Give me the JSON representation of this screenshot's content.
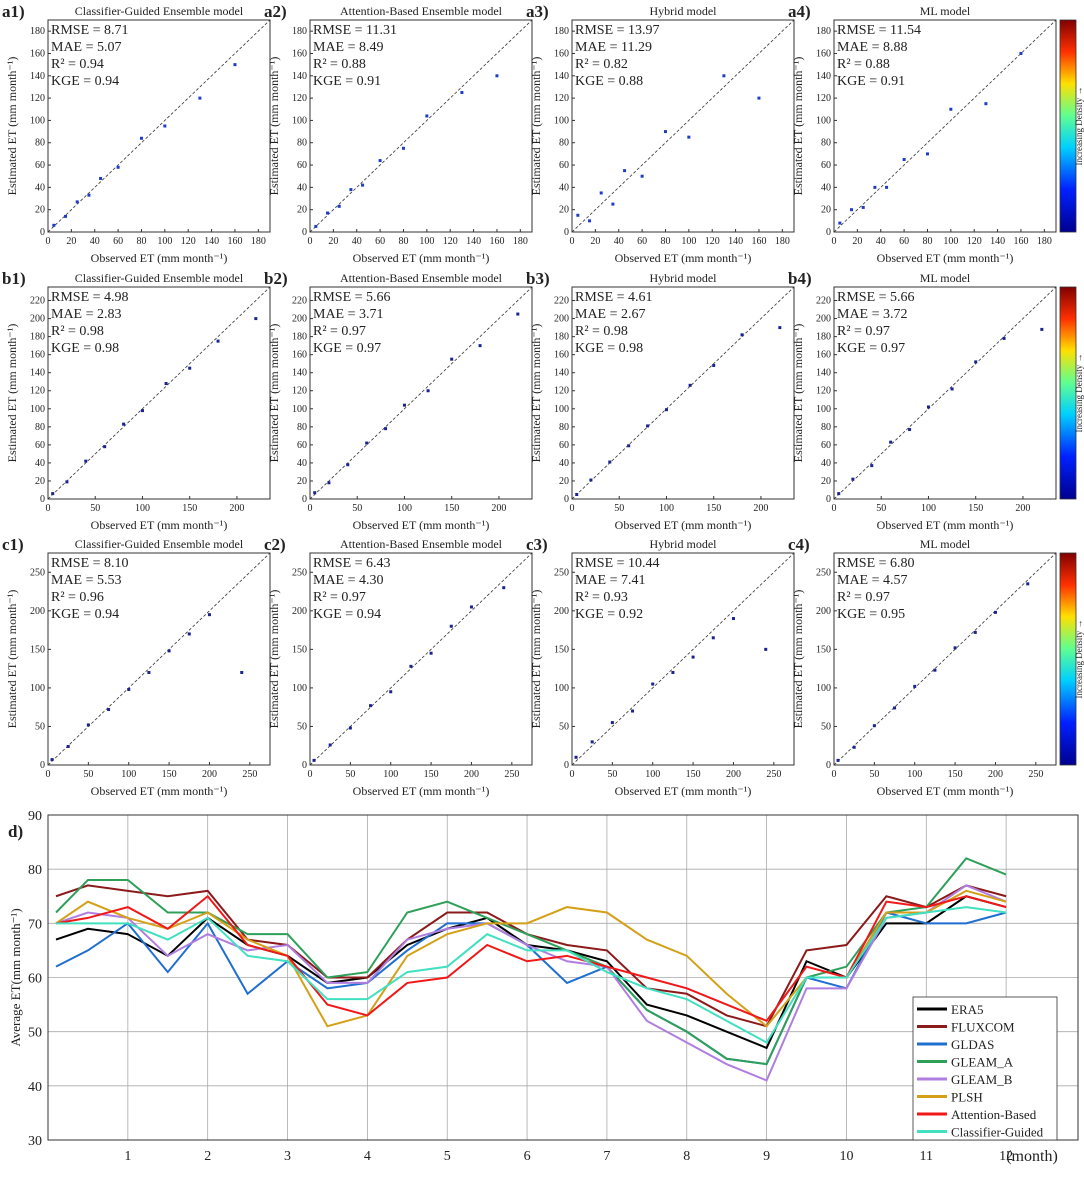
{
  "chart_data": [
    {
      "type": "scatter",
      "panel_label": "a1)",
      "title": "Classifier-Guided Ensemble model",
      "stats": [
        "RMSE =  8.71",
        "MAE =  5.07",
        "R² =  0.94",
        "KGE =  0.94"
      ],
      "xlabel": "Observed ET (mm month⁻¹)",
      "ylabel": "Estimated ET (mm month⁻¹)",
      "xlim": [
        0,
        190
      ],
      "ylim": [
        0,
        190
      ],
      "xticks": [
        0,
        20,
        40,
        60,
        80,
        100,
        120,
        140,
        160,
        180
      ],
      "yticks": [
        0,
        20,
        40,
        60,
        80,
        100,
        120,
        140,
        160,
        180
      ],
      "color": "#1f3cc8",
      "x": [
        5,
        15,
        25,
        35,
        45,
        60,
        80,
        100,
        130,
        160
      ],
      "y": [
        6,
        14,
        27,
        33,
        48,
        58,
        84,
        95,
        120,
        150
      ]
    },
    {
      "type": "scatter",
      "panel_label": "a2)",
      "title": "Attention-Based Ensemble model",
      "stats": [
        "RMSE = 11.31",
        "MAE =  8.49",
        "R² =  0.88",
        "KGE =  0.91"
      ],
      "xlabel": "Observed ET (mm month⁻¹)",
      "ylabel": "Estimated ET (mm month⁻¹)",
      "xlim": [
        0,
        190
      ],
      "ylim": [
        0,
        190
      ],
      "xticks": [
        0,
        20,
        40,
        60,
        80,
        100,
        120,
        140,
        160,
        180
      ],
      "yticks": [
        0,
        20,
        40,
        60,
        80,
        100,
        120,
        140,
        160,
        180
      ],
      "color": "#1f3cc8",
      "x": [
        5,
        15,
        25,
        35,
        45,
        60,
        80,
        100,
        130,
        160
      ],
      "y": [
        5,
        17,
        23,
        38,
        42,
        64,
        75,
        104,
        125,
        140
      ]
    },
    {
      "type": "scatter",
      "panel_label": "a3)",
      "title": "Hybrid model",
      "stats": [
        "RMSE =  13.97",
        "MAE =  11.29",
        "R² =  0.82",
        "KGE =  0.88"
      ],
      "xlabel": "Observed ET (mm month⁻¹)",
      "ylabel": "Estimated ET (mm month⁻¹)",
      "xlim": [
        0,
        190
      ],
      "ylim": [
        0,
        190
      ],
      "xticks": [
        0,
        20,
        40,
        60,
        80,
        100,
        120,
        140,
        160,
        180
      ],
      "yticks": [
        0,
        20,
        40,
        60,
        80,
        100,
        120,
        140,
        160,
        180
      ],
      "color": "#1f3cc8",
      "x": [
        5,
        15,
        25,
        35,
        45,
        60,
        80,
        100,
        130,
        160
      ],
      "y": [
        15,
        10,
        35,
        25,
        55,
        50,
        90,
        85,
        140,
        120
      ]
    },
    {
      "type": "scatter",
      "panel_label": "a4)",
      "title": "ML model",
      "stats": [
        "RMSE =  11.54",
        "MAE =  8.88",
        "R² =  0.88",
        "KGE =  0.91"
      ],
      "xlabel": "Observed ET (mm month⁻¹)",
      "ylabel": "Estimated ET (mm month⁻¹)",
      "xlim": [
        0,
        190
      ],
      "ylim": [
        0,
        190
      ],
      "xticks": [
        0,
        20,
        40,
        60,
        80,
        100,
        120,
        140,
        160,
        180
      ],
      "yticks": [
        0,
        20,
        40,
        60,
        80,
        100,
        120,
        140,
        160,
        180
      ],
      "color": "#1f3cc8",
      "x": [
        5,
        15,
        25,
        35,
        45,
        60,
        80,
        100,
        130,
        160
      ],
      "y": [
        8,
        20,
        22,
        40,
        40,
        65,
        70,
        110,
        115,
        160
      ],
      "colorbar_label": "Increasing Density →"
    },
    {
      "type": "scatter",
      "panel_label": "b1)",
      "title": "Classifier-Guided Ensemble model",
      "stats": [
        "RMSE =  4.98",
        "MAE =  2.83",
        "R² =  0.98",
        "KGE =  0.98"
      ],
      "xlabel": "Observed ET (mm month⁻¹)",
      "ylabel": "Estimated ET (mm month⁻¹)",
      "xlim": [
        0,
        235
      ],
      "ylim": [
        0,
        235
      ],
      "xticks": [
        0,
        50,
        100,
        150,
        200
      ],
      "yticks": [
        0,
        20,
        40,
        60,
        80,
        100,
        120,
        140,
        160,
        180,
        200,
        220
      ],
      "color": "#1a2390",
      "x": [
        5,
        20,
        40,
        60,
        80,
        100,
        125,
        150,
        180,
        220
      ],
      "y": [
        6,
        19,
        42,
        58,
        83,
        98,
        128,
        145,
        175,
        200
      ]
    },
    {
      "type": "scatter",
      "panel_label": "b2)",
      "title": "Attention-Based Ensemble model",
      "stats": [
        "RMSE =  5.66",
        "MAE =  3.71",
        "R² =  0.97",
        "KGE =  0.97"
      ],
      "xlabel": "Observed ET (mm month⁻¹)",
      "ylabel": "Estimated ET (mm month⁻¹)",
      "xlim": [
        0,
        235
      ],
      "ylim": [
        0,
        235
      ],
      "xticks": [
        0,
        50,
        100,
        150,
        200
      ],
      "yticks": [
        0,
        20,
        40,
        60,
        80,
        100,
        120,
        140,
        160,
        180,
        200,
        220
      ],
      "color": "#1a2390",
      "x": [
        5,
        20,
        40,
        60,
        80,
        100,
        125,
        150,
        180,
        220
      ],
      "y": [
        7,
        18,
        38,
        62,
        78,
        104,
        120,
        155,
        170,
        205
      ]
    },
    {
      "type": "scatter",
      "panel_label": "b3)",
      "title": "Hybrid model",
      "stats": [
        "RMSE =  4.61",
        "MAE =  2.67",
        "R² =  0.98",
        "KGE =  0.98"
      ],
      "xlabel": "Observed ET (mm month⁻¹)",
      "ylabel": "Estimated ET (mm month⁻¹)",
      "xlim": [
        0,
        235
      ],
      "ylim": [
        0,
        235
      ],
      "xticks": [
        0,
        50,
        100,
        150,
        200
      ],
      "yticks": [
        0,
        20,
        40,
        60,
        80,
        100,
        120,
        140,
        160,
        180,
        200,
        220
      ],
      "color": "#1a2390",
      "x": [
        5,
        20,
        40,
        60,
        80,
        100,
        125,
        150,
        180,
        220
      ],
      "y": [
        5,
        21,
        41,
        59,
        81,
        99,
        126,
        148,
        182,
        190
      ]
    },
    {
      "type": "scatter",
      "panel_label": "b4)",
      "title": "ML model",
      "stats": [
        "RMSE =  5.66",
        "MAE =  3.72",
        "R² =  0.97",
        "KGE =  0.97"
      ],
      "xlabel": "Observed ET (mm month⁻¹)",
      "ylabel": "Estimated ET (mm month⁻¹)",
      "xlim": [
        0,
        235
      ],
      "ylim": [
        0,
        235
      ],
      "xticks": [
        0,
        50,
        100,
        150,
        200
      ],
      "yticks": [
        0,
        20,
        40,
        60,
        80,
        100,
        120,
        140,
        160,
        180,
        200,
        220
      ],
      "color": "#1a2390",
      "x": [
        5,
        20,
        40,
        60,
        80,
        100,
        125,
        150,
        180,
        220
      ],
      "y": [
        6,
        22,
        37,
        63,
        77,
        102,
        122,
        152,
        178,
        188
      ],
      "colorbar_label": "Increasing Density →"
    },
    {
      "type": "scatter",
      "panel_label": "c1)",
      "title": "Classifier-Guided Ensemble model",
      "stats": [
        "RMSE =  8.10",
        "MAE =  5.53",
        "R² =  0.96",
        "KGE =  0.94"
      ],
      "xlabel": "Observed ET (mm month⁻¹)",
      "ylabel": "Estimated ET (mm month⁻¹)",
      "xlim": [
        0,
        275
      ],
      "ylim": [
        0,
        275
      ],
      "xticks": [
        0,
        50,
        100,
        150,
        200,
        250
      ],
      "yticks": [
        0,
        50,
        100,
        150,
        200,
        250
      ],
      "color": "#1a2390",
      "x": [
        5,
        25,
        50,
        75,
        100,
        125,
        150,
        175,
        200,
        240
      ],
      "y": [
        7,
        24,
        52,
        72,
        98,
        120,
        148,
        170,
        195,
        120
      ]
    },
    {
      "type": "scatter",
      "panel_label": "c2)",
      "title": "Attention-Based Ensemble model",
      "stats": [
        "RMSE =  6.43",
        "MAE =  4.30",
        "R² =  0.97",
        "KGE =  0.94"
      ],
      "xlabel": "Observed ET (mm month⁻¹)",
      "ylabel": "Estimated ET (mm month⁻¹)",
      "xlim": [
        0,
        275
      ],
      "ylim": [
        0,
        275
      ],
      "xticks": [
        0,
        50,
        100,
        150,
        200,
        250
      ],
      "yticks": [
        0,
        50,
        100,
        150,
        200,
        250
      ],
      "color": "#1a2390",
      "x": [
        5,
        25,
        50,
        75,
        100,
        125,
        150,
        175,
        200,
        240
      ],
      "y": [
        6,
        26,
        48,
        77,
        95,
        128,
        145,
        180,
        205,
        230
      ]
    },
    {
      "type": "scatter",
      "panel_label": "c3)",
      "title": "Hybrid model",
      "stats": [
        "RMSE =  10.44",
        "MAE =  7.41",
        "R² =  0.93",
        "KGE =  0.92"
      ],
      "xlabel": "Observed ET (mm month⁻¹)",
      "ylabel": "Estimated ET (mm month⁻¹)",
      "xlim": [
        0,
        275
      ],
      "ylim": [
        0,
        275
      ],
      "xticks": [
        0,
        50,
        100,
        150,
        200,
        250
      ],
      "yticks": [
        0,
        50,
        100,
        150,
        200,
        250
      ],
      "color": "#1a2390",
      "x": [
        5,
        25,
        50,
        75,
        100,
        125,
        150,
        175,
        200,
        240
      ],
      "y": [
        10,
        30,
        55,
        70,
        105,
        120,
        140,
        165,
        190,
        150
      ]
    },
    {
      "type": "scatter",
      "panel_label": "c4)",
      "title": "ML model",
      "stats": [
        "RMSE =  6.80",
        "MAE =  4.57",
        "R² =  0.97",
        "KGE =  0.95"
      ],
      "xlabel": "Observed ET (mm month⁻¹)",
      "ylabel": "Estimated ET (mm month⁻¹)",
      "xlim": [
        0,
        275
      ],
      "ylim": [
        0,
        275
      ],
      "xticks": [
        0,
        50,
        100,
        150,
        200,
        250
      ],
      "yticks": [
        0,
        50,
        100,
        150,
        200,
        250
      ],
      "color": "#1a2390",
      "x": [
        5,
        25,
        50,
        75,
        100,
        125,
        150,
        175,
        200,
        240
      ],
      "y": [
        6,
        23,
        51,
        74,
        102,
        123,
        152,
        172,
        198,
        235
      ],
      "colorbar_label": "Increasing Density →"
    },
    {
      "type": "line",
      "panel_label": "d)",
      "ylabel": "Average ET(mm month⁻¹)",
      "xlabel": "(month)",
      "xlim": [
        0,
        12.9
      ],
      "ylim": [
        30,
        90
      ],
      "xticks": [
        1,
        2,
        3,
        4,
        5,
        6,
        7,
        8,
        9,
        10,
        11,
        12
      ],
      "yticks": [
        30,
        40,
        50,
        60,
        70,
        80,
        90
      ],
      "grid": true,
      "x": [
        0.1,
        0.5,
        1,
        1.5,
        2,
        2.5,
        3,
        3.5,
        4,
        4.5,
        5,
        5.5,
        6,
        6.5,
        7,
        7.5,
        8,
        8.5,
        9,
        9.5,
        10,
        10.5,
        11,
        11.5,
        12
      ],
      "series": [
        {
          "name": "ERA5",
          "color": "#000000",
          "values": [
            67,
            69,
            68,
            64,
            71,
            66,
            64,
            59,
            60,
            66,
            69,
            71,
            66,
            65,
            63,
            55,
            53,
            50,
            47,
            63,
            60,
            70,
            70,
            75,
            73
          ]
        },
        {
          "name": "FLUXCOM",
          "color": "#8b1a1a",
          "values": [
            75,
            77,
            76,
            75,
            76,
            67,
            66,
            60,
            60,
            67,
            72,
            72,
            68,
            66,
            65,
            58,
            57,
            53,
            51,
            65,
            66,
            75,
            73,
            77,
            75
          ]
        },
        {
          "name": "GLDAS",
          "color": "#1f6fd0",
          "values": [
            62,
            65,
            70,
            61,
            70,
            57,
            63,
            58,
            59,
            65,
            70,
            70,
            66,
            59,
            62,
            54,
            50,
            45,
            44,
            60,
            58,
            72,
            70,
            70,
            72
          ]
        },
        {
          "name": "GLEAM_A",
          "color": "#2ea05a",
          "values": [
            72,
            78,
            78,
            72,
            72,
            68,
            68,
            60,
            61,
            72,
            74,
            71,
            68,
            65,
            62,
            54,
            50,
            45,
            44,
            60,
            62,
            72,
            73,
            82,
            79
          ]
        },
        {
          "name": "GLEAM_B",
          "color": "#b07ee0",
          "values": [
            70,
            72,
            71,
            64,
            68,
            65,
            66,
            59,
            59,
            67,
            69,
            70,
            66,
            63,
            62,
            52,
            48,
            44,
            41,
            58,
            58,
            71,
            72,
            77,
            74
          ]
        },
        {
          "name": "PLSH",
          "color": "#d4a017",
          "values": [
            70,
            74,
            71,
            69,
            72,
            67,
            64,
            51,
            53,
            64,
            68,
            70,
            70,
            73,
            72,
            67,
            64,
            57,
            51,
            60,
            60,
            72,
            72,
            76,
            74
          ]
        },
        {
          "name": "Attention-Based",
          "color": "#f01818",
          "values": [
            70,
            71,
            73,
            69,
            75,
            66,
            64,
            55,
            53,
            59,
            60,
            66,
            63,
            64,
            62,
            60,
            58,
            55,
            52,
            62,
            60,
            74,
            73,
            75,
            73
          ]
        },
        {
          "name": "Classifier-Guided",
          "color": "#40e0c0",
          "values": [
            70,
            70,
            70,
            67,
            71,
            64,
            63,
            56,
            56,
            61,
            62,
            68,
            65,
            65,
            61,
            58,
            56,
            52,
            48,
            60,
            60,
            71,
            72,
            73,
            72
          ]
        }
      ]
    }
  ]
}
